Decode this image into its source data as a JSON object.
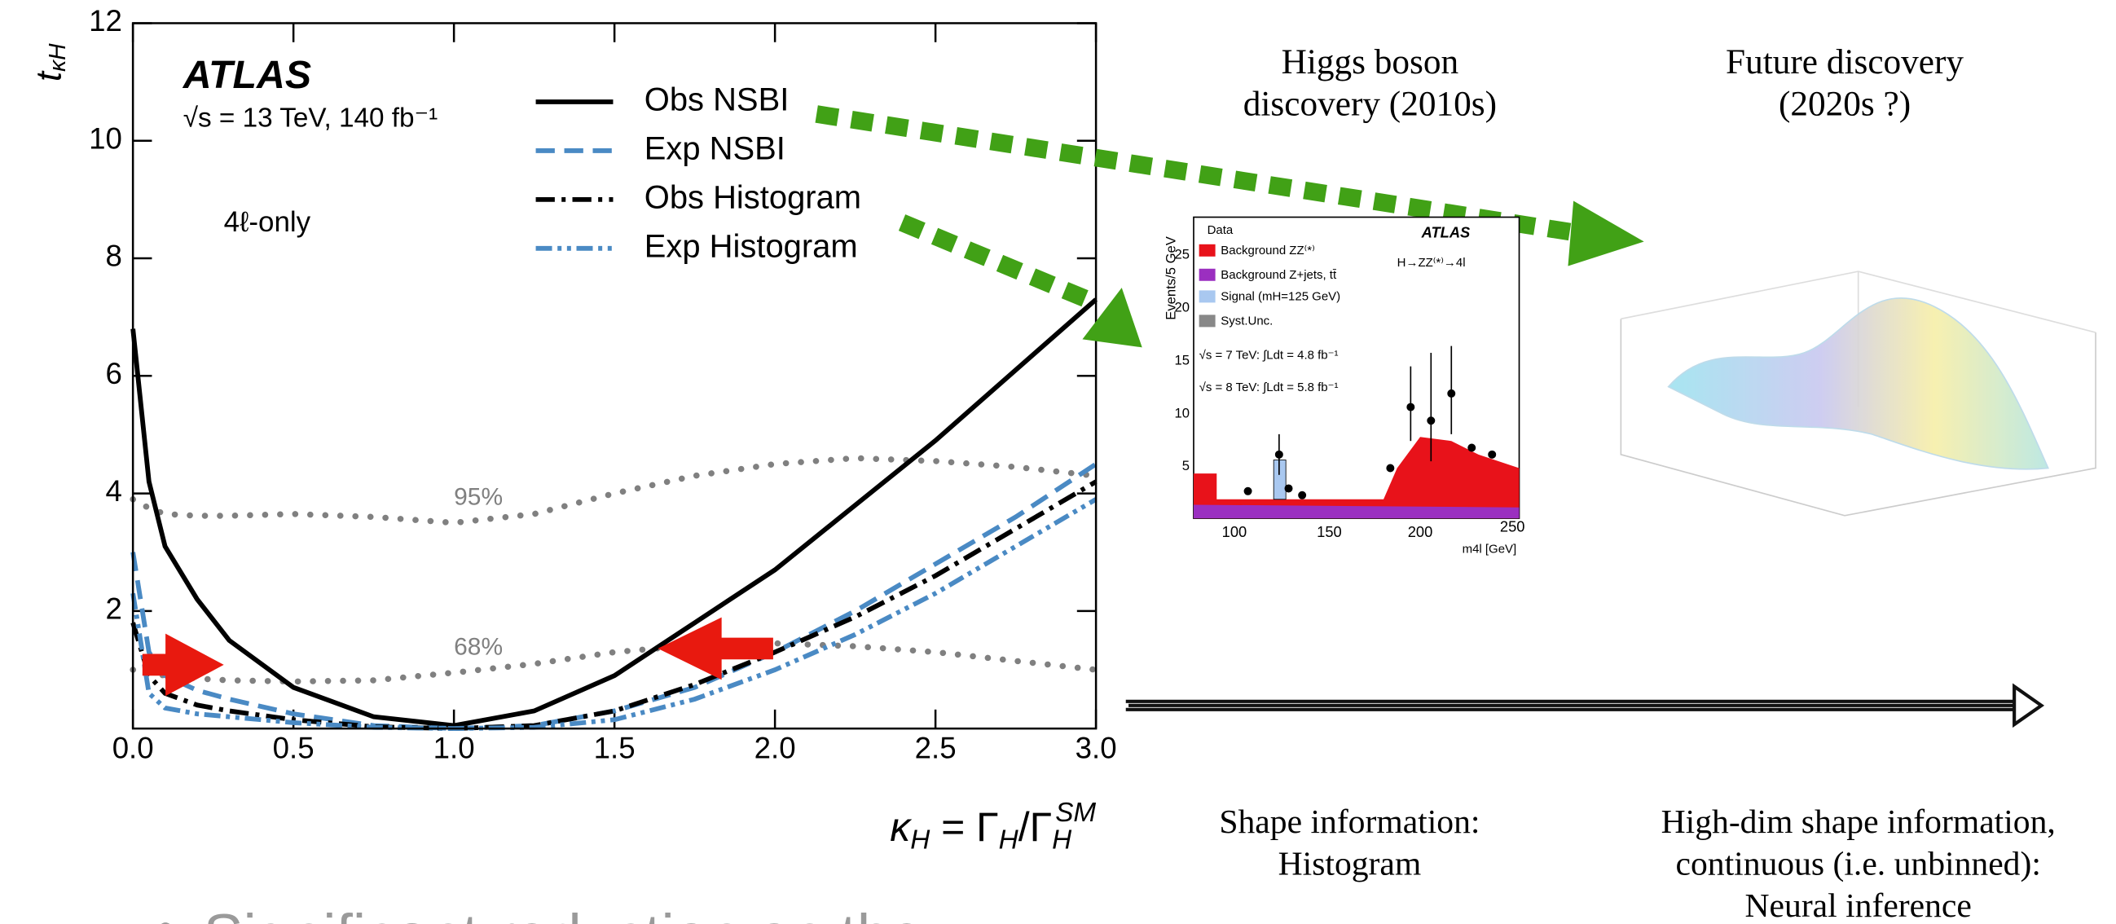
{
  "chart_data": {
    "type": "line",
    "y_label": {
      "base": "t",
      "sub": "κH"
    },
    "x_label_parts": [
      "κ",
      "H",
      " = Γ",
      "H",
      "/Γ",
      "H",
      "SM"
    ],
    "experiment": "ATLAS",
    "energy_label": "√s = 13 TeV, 140 fb⁻¹",
    "channel_label": "4ℓ-only",
    "x": [
      0,
      0.05,
      0.1,
      0.2,
      0.3,
      0.5,
      0.75,
      1.0,
      1.25,
      1.5,
      1.75,
      2.0,
      2.25,
      2.5,
      2.75,
      3.0
    ],
    "series": [
      {
        "name": "Obs NSBI",
        "color": "#000000",
        "style": "solid",
        "values": [
          6.8,
          4.2,
          3.1,
          2.2,
          1.5,
          0.7,
          0.2,
          0.05,
          0.3,
          0.9,
          1.8,
          2.7,
          3.8,
          4.9,
          6.1,
          7.3
        ]
      },
      {
        "name": "Exp NSBI",
        "color": "#4a8ac4",
        "style": "dashed",
        "values": [
          3.0,
          1.3,
          0.9,
          0.65,
          0.5,
          0.25,
          0.05,
          0.0,
          0.05,
          0.3,
          0.7,
          1.3,
          2.0,
          2.8,
          3.6,
          4.5
        ]
      },
      {
        "name": "Obs Histogram",
        "color": "#000000",
        "style": "dashdot",
        "values": [
          1.8,
          0.9,
          0.6,
          0.4,
          0.3,
          0.15,
          0.03,
          0.0,
          0.05,
          0.3,
          0.75,
          1.3,
          1.9,
          2.6,
          3.4,
          4.2
        ]
      },
      {
        "name": "Exp Histogram",
        "color": "#4a8ac4",
        "style": "dashdotdot",
        "values": [
          2.3,
          0.6,
          0.35,
          0.25,
          0.2,
          0.1,
          0.02,
          0.0,
          0.02,
          0.15,
          0.5,
          1.0,
          1.6,
          2.3,
          3.1,
          3.9
        ]
      }
    ],
    "reference_curves": [
      {
        "label": "95%",
        "color": "#808080",
        "values": [
          3.9,
          3.75,
          3.65,
          3.62,
          3.62,
          3.65,
          3.6,
          3.5,
          3.65,
          4.0,
          4.3,
          4.5,
          4.6,
          4.55,
          4.45,
          4.3
        ]
      },
      {
        "label": "68%",
        "color": "#808080",
        "values": [
          1.0,
          0.95,
          0.9,
          0.85,
          0.82,
          0.8,
          0.82,
          0.95,
          1.1,
          1.3,
          1.42,
          1.45,
          1.4,
          1.3,
          1.15,
          1.0
        ]
      }
    ],
    "xlim": [
      0,
      3
    ],
    "ylim": [
      0,
      12
    ],
    "xticks": [
      {
        "value": 0,
        "label": "0.0"
      },
      {
        "value": 0.5,
        "label": "0.5"
      },
      {
        "value": 1,
        "label": "1.0"
      },
      {
        "value": 1.5,
        "label": "1.5"
      },
      {
        "value": 2,
        "label": "2.0"
      },
      {
        "value": 2.5,
        "label": "2.5"
      },
      {
        "value": 3,
        "label": "3.0"
      }
    ],
    "yticks": [
      2,
      4,
      6,
      8,
      10,
      12
    ],
    "grid": false
  },
  "timeline": {
    "past": {
      "heading": [
        "Higgs boson",
        "discovery (2010s)"
      ],
      "caption": [
        "Shape information:",
        "Histogram"
      ]
    },
    "future": {
      "heading": [
        "Future discovery",
        "(2020s ?)"
      ],
      "caption": [
        "High-dim shape information,",
        "continuous (i.e. unbinned):",
        "Neural inference"
      ]
    }
  },
  "inset": {
    "experiment": "ATLAS",
    "process": "H→ZZ⁽*⁾→4l",
    "legend": [
      "Data",
      "Background ZZ⁽*⁾",
      "Background Z+jets, tt̄",
      "Signal (mH=125 GeV)",
      "Syst.Unc."
    ],
    "lumi": [
      "√s = 7 TeV: ∫Ldt = 4.8 fb⁻¹",
      "√s = 8 TeV: ∫Ldt = 5.8 fb⁻¹"
    ],
    "y_label": "Events/5 GeV",
    "y_ticks": [
      "5",
      "10",
      "15",
      "20",
      "25"
    ],
    "x_ticks": [
      "100",
      "150",
      "200",
      "250"
    ],
    "x_label": "m4l [GeV]"
  },
  "bullet": "Significant reduction on the"
}
